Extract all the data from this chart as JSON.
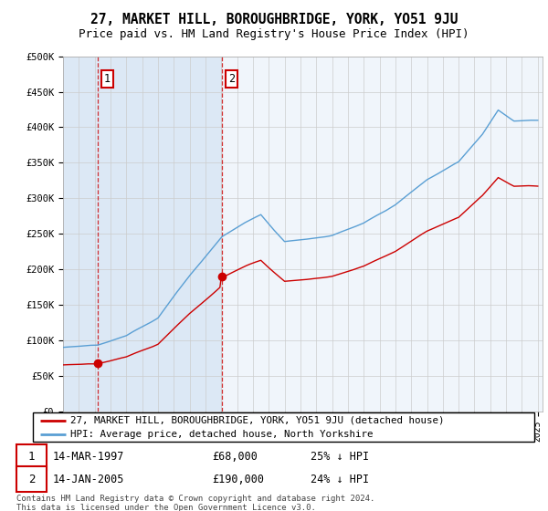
{
  "title": "27, MARKET HILL, BOROUGHBRIDGE, YORK, YO51 9JU",
  "subtitle": "Price paid vs. HM Land Registry's House Price Index (HPI)",
  "x_start_year": 1995,
  "x_end_year": 2025,
  "y_min": 0,
  "y_max": 500000,
  "y_ticks": [
    0,
    50000,
    100000,
    150000,
    200000,
    250000,
    300000,
    350000,
    400000,
    450000,
    500000
  ],
  "y_tick_labels": [
    "£0",
    "£50K",
    "£100K",
    "£150K",
    "£200K",
    "£250K",
    "£300K",
    "£350K",
    "£400K",
    "£450K",
    "£500K"
  ],
  "hpi_color": "#5a9fd4",
  "price_color": "#cc0000",
  "sale1_year": 1997.18,
  "sale1_price": 68000,
  "sale1_label": "1",
  "sale1_date": "14-MAR-1997",
  "sale1_pct": "25%",
  "sale2_year": 2005.04,
  "sale2_price": 190000,
  "sale2_label": "2",
  "sale2_date": "14-JAN-2005",
  "sale2_pct": "24%",
  "bg_shade_color": "#dce8f5",
  "grid_color": "#cccccc",
  "legend_property": "27, MARKET HILL, BOROUGHBRIDGE, YORK, YO51 9JU (detached house)",
  "legend_hpi": "HPI: Average price, detached house, North Yorkshire",
  "footnote": "Contains HM Land Registry data © Crown copyright and database right 2024.\nThis data is licensed under the Open Government Licence v3.0.",
  "title_fontsize": 10.5,
  "subtitle_fontsize": 9
}
